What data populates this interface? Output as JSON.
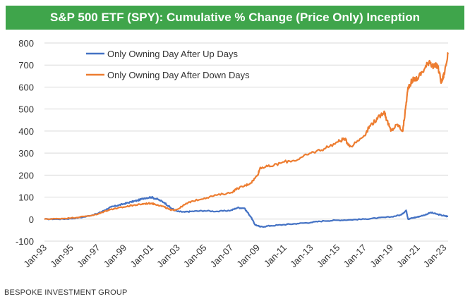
{
  "header": {
    "title": "S&P 500 ETF (SPY): Cumulative % Change (Price Only) Inception"
  },
  "footer": {
    "source": "BESPOKE INVESTMENT GROUP"
  },
  "colors": {
    "title_bg": "#3fa54b",
    "series_up": "#4472c4",
    "series_down": "#ed7d31",
    "grid": "#d9d9d9"
  },
  "chart_data": {
    "type": "line",
    "title": "S&P 500 ETF (SPY): Cumulative % Change (Price Only) Inception",
    "xlabel": "",
    "ylabel": "",
    "x_range": [
      1993.0,
      2023.3
    ],
    "ylim": [
      -100,
      800
    ],
    "y_ticks": [
      -100,
      0,
      100,
      200,
      300,
      400,
      500,
      600,
      700,
      800
    ],
    "x_tick_labels": [
      "Jan-93",
      "Jan-95",
      "Jan-97",
      "Jan-99",
      "Jan-01",
      "Jan-03",
      "Jan-05",
      "Jan-07",
      "Jan-09",
      "Jan-11",
      "Jan-13",
      "Jan-15",
      "Jan-17",
      "Jan-19",
      "Jan-21",
      "Jan-23"
    ],
    "x_tick_positions": [
      1993,
      1995,
      1997,
      1999,
      2001,
      2003,
      2005,
      2007,
      2009,
      2011,
      2013,
      2015,
      2017,
      2019,
      2021,
      2023
    ],
    "grid": "horizontal",
    "legend_position": "top-left",
    "series": [
      {
        "name": "Only Owning Day After Up Days",
        "color": "#4472c4",
        "x": [
          1993.0,
          1994.0,
          1995.0,
          1996.0,
          1997.0,
          1997.5,
          1998.0,
          1998.5,
          1999.0,
          1999.5,
          2000.0,
          2000.5,
          2001.0,
          2001.5,
          2002.0,
          2002.5,
          2003.0,
          2003.5,
          2004.0,
          2005.0,
          2006.0,
          2007.0,
          2007.5,
          2008.0,
          2008.5,
          2008.8,
          2009.2,
          2010.0,
          2011.0,
          2012.0,
          2013.0,
          2014.0,
          2015.0,
          2016.0,
          2017.0,
          2018.0,
          2019.0,
          2019.8,
          2020.15,
          2020.3,
          2020.6,
          2021.0,
          2021.5,
          2022.0,
          2022.5,
          2023.0,
          2023.3
        ],
        "values": [
          0,
          0,
          2,
          10,
          25,
          40,
          55,
          62,
          70,
          78,
          85,
          95,
          100,
          90,
          75,
          50,
          35,
          32,
          35,
          38,
          35,
          40,
          52,
          50,
          10,
          -25,
          -35,
          -30,
          -25,
          -20,
          -15,
          -8,
          -5,
          -3,
          0,
          5,
          10,
          20,
          40,
          0,
          5,
          10,
          18,
          30,
          22,
          15,
          12
        ]
      },
      {
        "name": "Only Owning Day After Down Days",
        "color": "#ed7d31",
        "x": [
          1993.0,
          1994.0,
          1995.0,
          1996.0,
          1997.0,
          1997.5,
          1998.0,
          1998.5,
          1999.0,
          1999.5,
          2000.0,
          2000.5,
          2001.0,
          2001.5,
          2002.0,
          2002.5,
          2003.0,
          2003.5,
          2004.0,
          2005.0,
          2006.0,
          2007.0,
          2007.5,
          2008.0,
          2008.5,
          2009.0,
          2009.2,
          2010.0,
          2011.0,
          2012.0,
          2013.0,
          2014.0,
          2015.0,
          2015.5,
          2016.0,
          2017.0,
          2017.5,
          2018.0,
          2018.5,
          2018.7,
          2019.0,
          2019.5,
          2019.9,
          2020.1,
          2020.3,
          2020.6,
          2021.0,
          2021.5,
          2021.9,
          2022.2,
          2022.5,
          2022.8,
          2023.0,
          2023.3
        ],
        "values": [
          0,
          2,
          5,
          12,
          22,
          35,
          45,
          50,
          55,
          62,
          65,
          70,
          72,
          65,
          55,
          40,
          45,
          65,
          80,
          95,
          110,
          120,
          140,
          150,
          165,
          200,
          235,
          240,
          260,
          270,
          300,
          320,
          350,
          365,
          330,
          380,
          430,
          455,
          490,
          450,
          400,
          430,
          400,
          500,
          600,
          630,
          640,
          680,
          720,
          690,
          700,
          620,
          660,
          750
        ]
      }
    ]
  }
}
